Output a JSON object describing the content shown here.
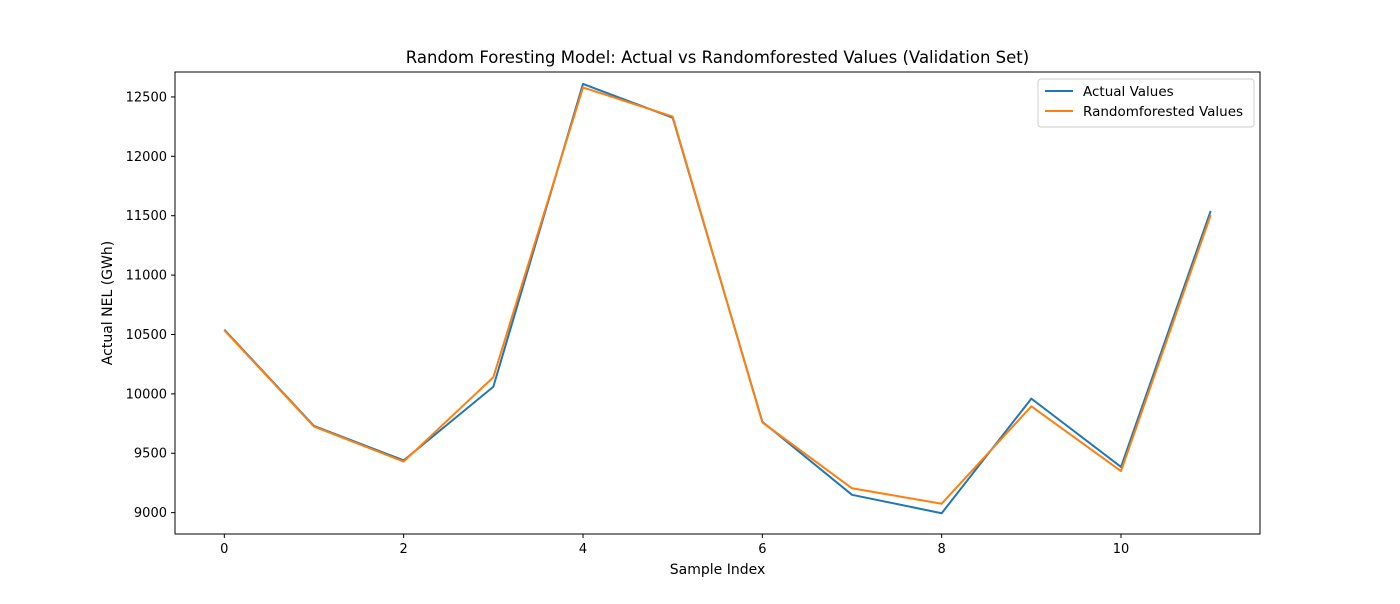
{
  "chart_data": {
    "type": "line",
    "title": "Random Foresting Model: Actual vs Randomforested Values (Validation Set)",
    "xlabel": "Sample Index",
    "ylabel": "Actual NEL (GWh)",
    "x": [
      0,
      1,
      2,
      3,
      4,
      5,
      6,
      7,
      8,
      9,
      10,
      11
    ],
    "xlim": [
      -0.55,
      11.55
    ],
    "ylim": [
      8820,
      12710
    ],
    "xticks": [
      0,
      2,
      4,
      6,
      8,
      10
    ],
    "yticks": [
      9000,
      9500,
      10000,
      10500,
      11000,
      11500,
      12000,
      12500
    ],
    "grid": false,
    "legend_position": "top-right",
    "series": [
      {
        "name": "Actual Values",
        "color": "#1f77b4",
        "values": [
          10540,
          9730,
          9440,
          10060,
          12610,
          12325,
          9765,
          9150,
          8995,
          9960,
          9385,
          11540
        ]
      },
      {
        "name": "Randomforested Values",
        "color": "#ff7f0e",
        "values": [
          10535,
          9725,
          9430,
          10140,
          12580,
          12335,
          9760,
          9205,
          9075,
          9895,
          9350,
          11505
        ]
      }
    ]
  }
}
